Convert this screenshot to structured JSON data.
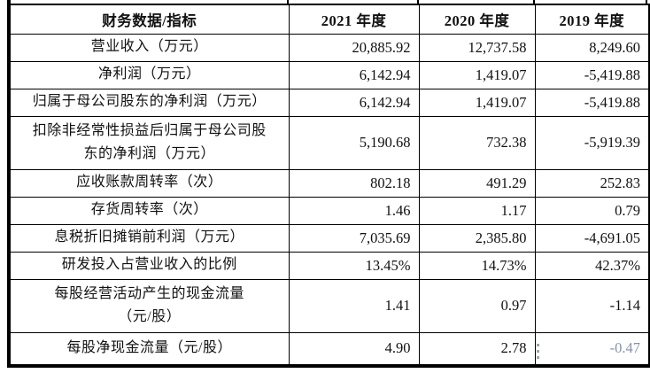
{
  "table": {
    "header": {
      "indicator": "财务数据/指标",
      "y2021": "2021 年度",
      "y2020": "2020 年度",
      "y2019": "2019 年度"
    },
    "rows": [
      {
        "label": "营业收入（万元）",
        "values": [
          "20,885.92",
          "12,737.58",
          "8,249.60"
        ]
      },
      {
        "label": "净利润（万元）",
        "values": [
          "6,142.94",
          "1,419.07",
          "-5,419.88"
        ]
      },
      {
        "label": "归属于母公司股东的净利润（万元）",
        "values": [
          "6,142.94",
          "1,419.07",
          "-5,419.88"
        ]
      },
      {
        "label": "扣除非经常性损益后归属于母公司股\n东的净利润（万元）",
        "values": [
          "5,190.68",
          "732.38",
          "-5,919.39"
        ],
        "tall": true
      },
      {
        "label": "应收账款周转率（次）",
        "values": [
          "802.18",
          "491.29",
          "252.83"
        ]
      },
      {
        "label": "存货周转率（次）",
        "values": [
          "1.46",
          "1.17",
          "0.79"
        ]
      },
      {
        "label": "息税折旧摊销前利润（万元）",
        "values": [
          "7,035.69",
          "2,385.80",
          "-4,691.05"
        ]
      },
      {
        "label": "研发投入占营业收入的比例",
        "values": [
          "13.45%",
          "14.73%",
          "42.37%"
        ]
      },
      {
        "label": "每股经营活动产生的现金流量\n（元/股）",
        "values": [
          "1.41",
          "0.97",
          "-1.14"
        ],
        "tall": true
      },
      {
        "label": "每股净现金流量（元/股）",
        "values": [
          "4.90",
          "2.78",
          "-0.47"
        ],
        "muted": [
          false,
          false,
          true
        ]
      }
    ],
    "colors": {
      "border": "#000000",
      "text": "#111111",
      "muted_value": "#8494a8"
    }
  }
}
